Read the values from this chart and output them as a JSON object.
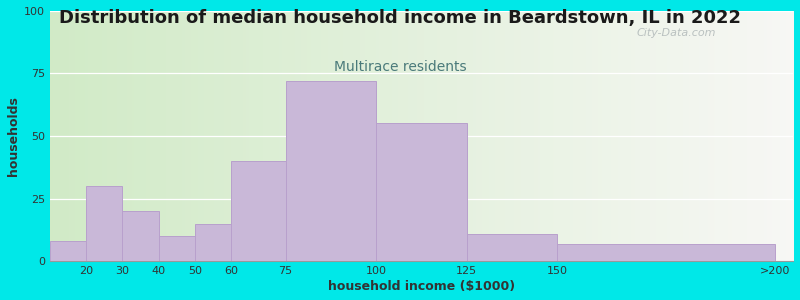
{
  "title": "Distribution of median household income in Beardstown, IL in 2022",
  "subtitle": "Multirace residents",
  "xlabel": "household income ($1000)",
  "ylabel": "households",
  "values": [
    8,
    30,
    20,
    10,
    15,
    40,
    72,
    55,
    11,
    7
  ],
  "bar_color": "#c9b8d8",
  "bar_edgecolor": "#b8a0cc",
  "background_outer": "#00e8e8",
  "ylim": [
    0,
    100
  ],
  "yticks": [
    0,
    25,
    50,
    75,
    100
  ],
  "title_fontsize": 13,
  "subtitle_fontsize": 10,
  "title_color": "#1a1a1a",
  "subtitle_color": "#4a7a7a",
  "axis_label_fontsize": 9,
  "tick_fontsize": 8,
  "watermark": "City-Data.com",
  "bar_lefts": [
    10,
    20,
    30,
    40,
    50,
    60,
    75,
    100,
    125,
    150
  ],
  "bar_rights": [
    20,
    30,
    40,
    50,
    60,
    75,
    100,
    125,
    150,
    210
  ],
  "xtick_positions": [
    20,
    30,
    40,
    50,
    60,
    75,
    100,
    125,
    150,
    210
  ],
  "xtick_labels": [
    "20",
    "30",
    "40",
    "50",
    "60",
    "75",
    "100",
    "125",
    "150",
    ">200"
  ],
  "xlim": [
    10,
    215
  ]
}
